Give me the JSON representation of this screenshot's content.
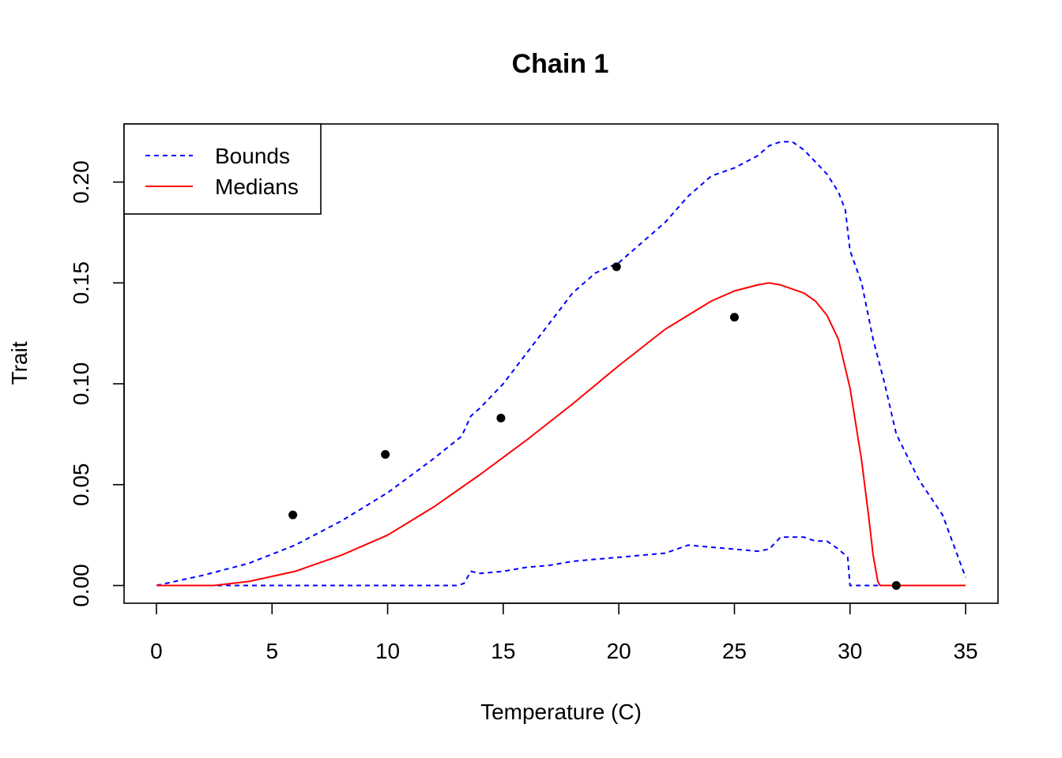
{
  "chart_data": {
    "type": "line",
    "title": "Chain 1",
    "xlabel": "Temperature (C)",
    "ylabel": "Trait",
    "xlim": [
      -1.4,
      36.4
    ],
    "ylim": [
      -0.0088,
      0.2288
    ],
    "x_ticks": [
      0,
      5,
      10,
      15,
      20,
      25,
      30,
      35
    ],
    "x_tick_labels": [
      "0",
      "5",
      "10",
      "15",
      "20",
      "25",
      "30",
      "35"
    ],
    "y_ticks": [
      0.0,
      0.05,
      0.1,
      0.15,
      0.2
    ],
    "y_tick_labels": [
      "0.00",
      "0.05",
      "0.10",
      "0.15",
      "0.20"
    ],
    "legend": {
      "position": "top-left",
      "entries": [
        {
          "label": "Bounds",
          "color": "#0000FF",
          "style": "dashed"
        },
        {
          "label": "Medians",
          "color": "#FF0000",
          "style": "solid"
        }
      ]
    },
    "series": [
      {
        "name": "Bounds",
        "color": "#0000FF",
        "style": "dashed",
        "x": [
          0,
          2,
          4,
          6,
          8,
          10,
          12,
          13.2,
          13.6,
          14,
          15,
          16,
          17,
          18,
          19,
          20,
          21,
          22,
          23,
          24,
          25,
          26,
          26.5,
          27,
          27.5,
          28,
          28.5,
          29,
          29.5,
          29.8,
          30,
          30.5,
          31,
          31.5,
          32,
          33,
          34,
          35
        ],
        "y": [
          0,
          0.005,
          0.011,
          0.02,
          0.032,
          0.046,
          0.063,
          0.074,
          0.084,
          0.088,
          0.1,
          0.115,
          0.13,
          0.145,
          0.155,
          0.16,
          0.17,
          0.18,
          0.193,
          0.203,
          0.207,
          0.213,
          0.218,
          0.22,
          0.22,
          0.216,
          0.21,
          0.204,
          0.195,
          0.186,
          0.166,
          0.15,
          0.122,
          0.1,
          0.075,
          0.052,
          0.035,
          0.004
        ]
      },
      {
        "name": "",
        "color": "#0000FF",
        "style": "dashed",
        "x": [
          0,
          5,
          10,
          13.0,
          13.3,
          13.6,
          14,
          15,
          16,
          17,
          18,
          19,
          20,
          21,
          22,
          23,
          24,
          25,
          26,
          26.5,
          27,
          27.5,
          28,
          28.5,
          29,
          29.5,
          29.9,
          30.0,
          31,
          35
        ],
        "y": [
          0,
          0,
          0,
          0,
          0.001,
          0.007,
          0.006,
          0.007,
          0.009,
          0.01,
          0.012,
          0.013,
          0.014,
          0.015,
          0.016,
          0.02,
          0.019,
          0.018,
          0.017,
          0.018,
          0.024,
          0.024,
          0.024,
          0.022,
          0.022,
          0.018,
          0.014,
          0,
          0,
          0
        ]
      },
      {
        "name": "Medians",
        "color": "#FF0000",
        "style": "solid",
        "x": [
          0,
          2.5,
          4,
          6,
          8,
          10,
          12,
          14,
          16,
          18,
          20,
          22,
          24,
          25,
          26,
          26.5,
          27,
          28,
          28.5,
          29,
          29.5,
          30,
          30.5,
          30.8,
          31,
          31.2,
          31.3,
          35
        ],
        "y": [
          0,
          0,
          0.002,
          0.007,
          0.015,
          0.025,
          0.039,
          0.055,
          0.072,
          0.09,
          0.109,
          0.127,
          0.141,
          0.146,
          0.149,
          0.15,
          0.149,
          0.145,
          0.141,
          0.134,
          0.122,
          0.098,
          0.062,
          0.035,
          0.015,
          0.002,
          0,
          0
        ]
      }
    ],
    "points": {
      "color": "#000000",
      "x": [
        5.9,
        9.9,
        14.9,
        19.9,
        25.0,
        32.0
      ],
      "y": [
        0.035,
        0.065,
        0.083,
        0.158,
        0.133,
        0.0
      ]
    }
  }
}
